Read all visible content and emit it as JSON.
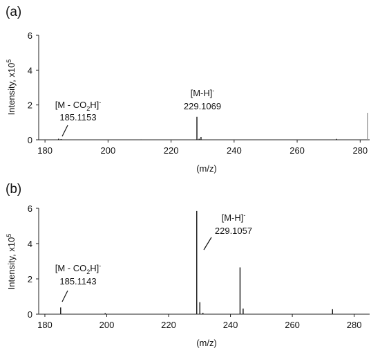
{
  "chart_data": [
    {
      "type": "bar",
      "panel_label": "(a)",
      "xlabel": "(m/z)",
      "ylabel": "Intensity, x10",
      "ylabel_exponent": "5",
      "xlim": [
        178,
        283
      ],
      "ylim": [
        0,
        6
      ],
      "xticks": [
        "180",
        "200",
        "220",
        "240",
        "260",
        "280"
      ],
      "yticks": [
        "0",
        "2",
        "4",
        "6"
      ],
      "grid": false,
      "peaks": [
        {
          "x": 184.3,
          "y": 0.06
        },
        {
          "x": 185.1,
          "y": 0.04
        },
        {
          "x": 210.5,
          "y": 0.02
        },
        {
          "x": 228.2,
          "y": 1.32
        },
        {
          "x": 228.9,
          "y": 0.06
        },
        {
          "x": 229.5,
          "y": 0.16
        },
        {
          "x": 272.5,
          "y": 0.05
        },
        {
          "x": 282.3,
          "y": 1.55
        }
      ],
      "annotations": [
        {
          "label_main": "[M - CO",
          "label_sub": "2",
          "label_after": "H]",
          "label_sup": "-",
          "value": "185.1153",
          "x": 185.1153
        },
        {
          "label_main": "[M-H]",
          "label_sub": "",
          "label_after": "",
          "label_sup": "-",
          "value": "229.1069",
          "x": 229.1069
        }
      ]
    },
    {
      "type": "bar",
      "panel_label": "(b)",
      "xlabel": "(m/z)",
      "ylabel": "Intensity, x10",
      "ylabel_exponent": "5",
      "xlim": [
        178,
        285
      ],
      "ylim": [
        0,
        6
      ],
      "xticks": [
        "180",
        "200",
        "220",
        "240",
        "260",
        "280"
      ],
      "yticks": [
        "0",
        "2",
        "4",
        "6"
      ],
      "grid": false,
      "peaks": [
        {
          "x": 185.1,
          "y": 0.38
        },
        {
          "x": 199.5,
          "y": 0.06
        },
        {
          "x": 229.1,
          "y": 5.85
        },
        {
          "x": 230.1,
          "y": 0.68
        },
        {
          "x": 231.1,
          "y": 0.08
        },
        {
          "x": 243.1,
          "y": 2.65
        },
        {
          "x": 244.1,
          "y": 0.32
        },
        {
          "x": 273.0,
          "y": 0.28
        }
      ],
      "annotations": [
        {
          "label_main": "[M - CO",
          "label_sub": "2",
          "label_after": "H]",
          "label_sup": "-",
          "value": "185.1143",
          "x": 185.1143
        },
        {
          "label_main": "[M-H]",
          "label_sub": "",
          "label_after": "",
          "label_sup": "-",
          "value": "229.1057",
          "x": 229.1057
        }
      ]
    }
  ]
}
